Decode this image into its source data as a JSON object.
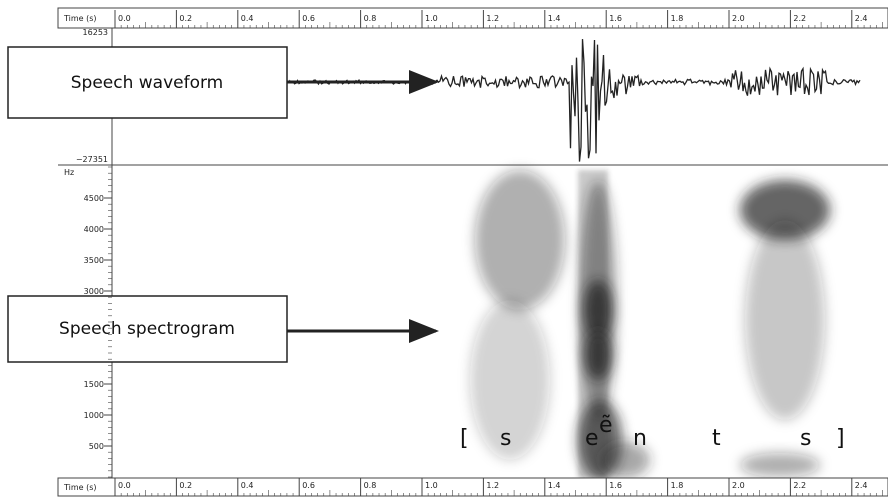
{
  "time_axis": {
    "label": "Time (s)",
    "ticks": [
      "0.0",
      "0.2",
      "0.4",
      "0.6",
      "0.8",
      "1.0",
      "1.2",
      "1.4",
      "1.6",
      "1.8",
      "2.0",
      "2.2",
      "2.4"
    ]
  },
  "waveform": {
    "max_label": "16253",
    "min_label": "−27351",
    "callout": "Speech waveform"
  },
  "spectrogram": {
    "unit": "Hz",
    "ticks": [
      "4500",
      "4000",
      "3500",
      "3000",
      "1500",
      "1000",
      "500"
    ],
    "callout": "Speech spectrogram"
  },
  "transcription": {
    "symbols": [
      "[",
      "s",
      "e",
      "n",
      "t",
      "s",
      "]"
    ],
    "superscript": "ẽ"
  }
}
